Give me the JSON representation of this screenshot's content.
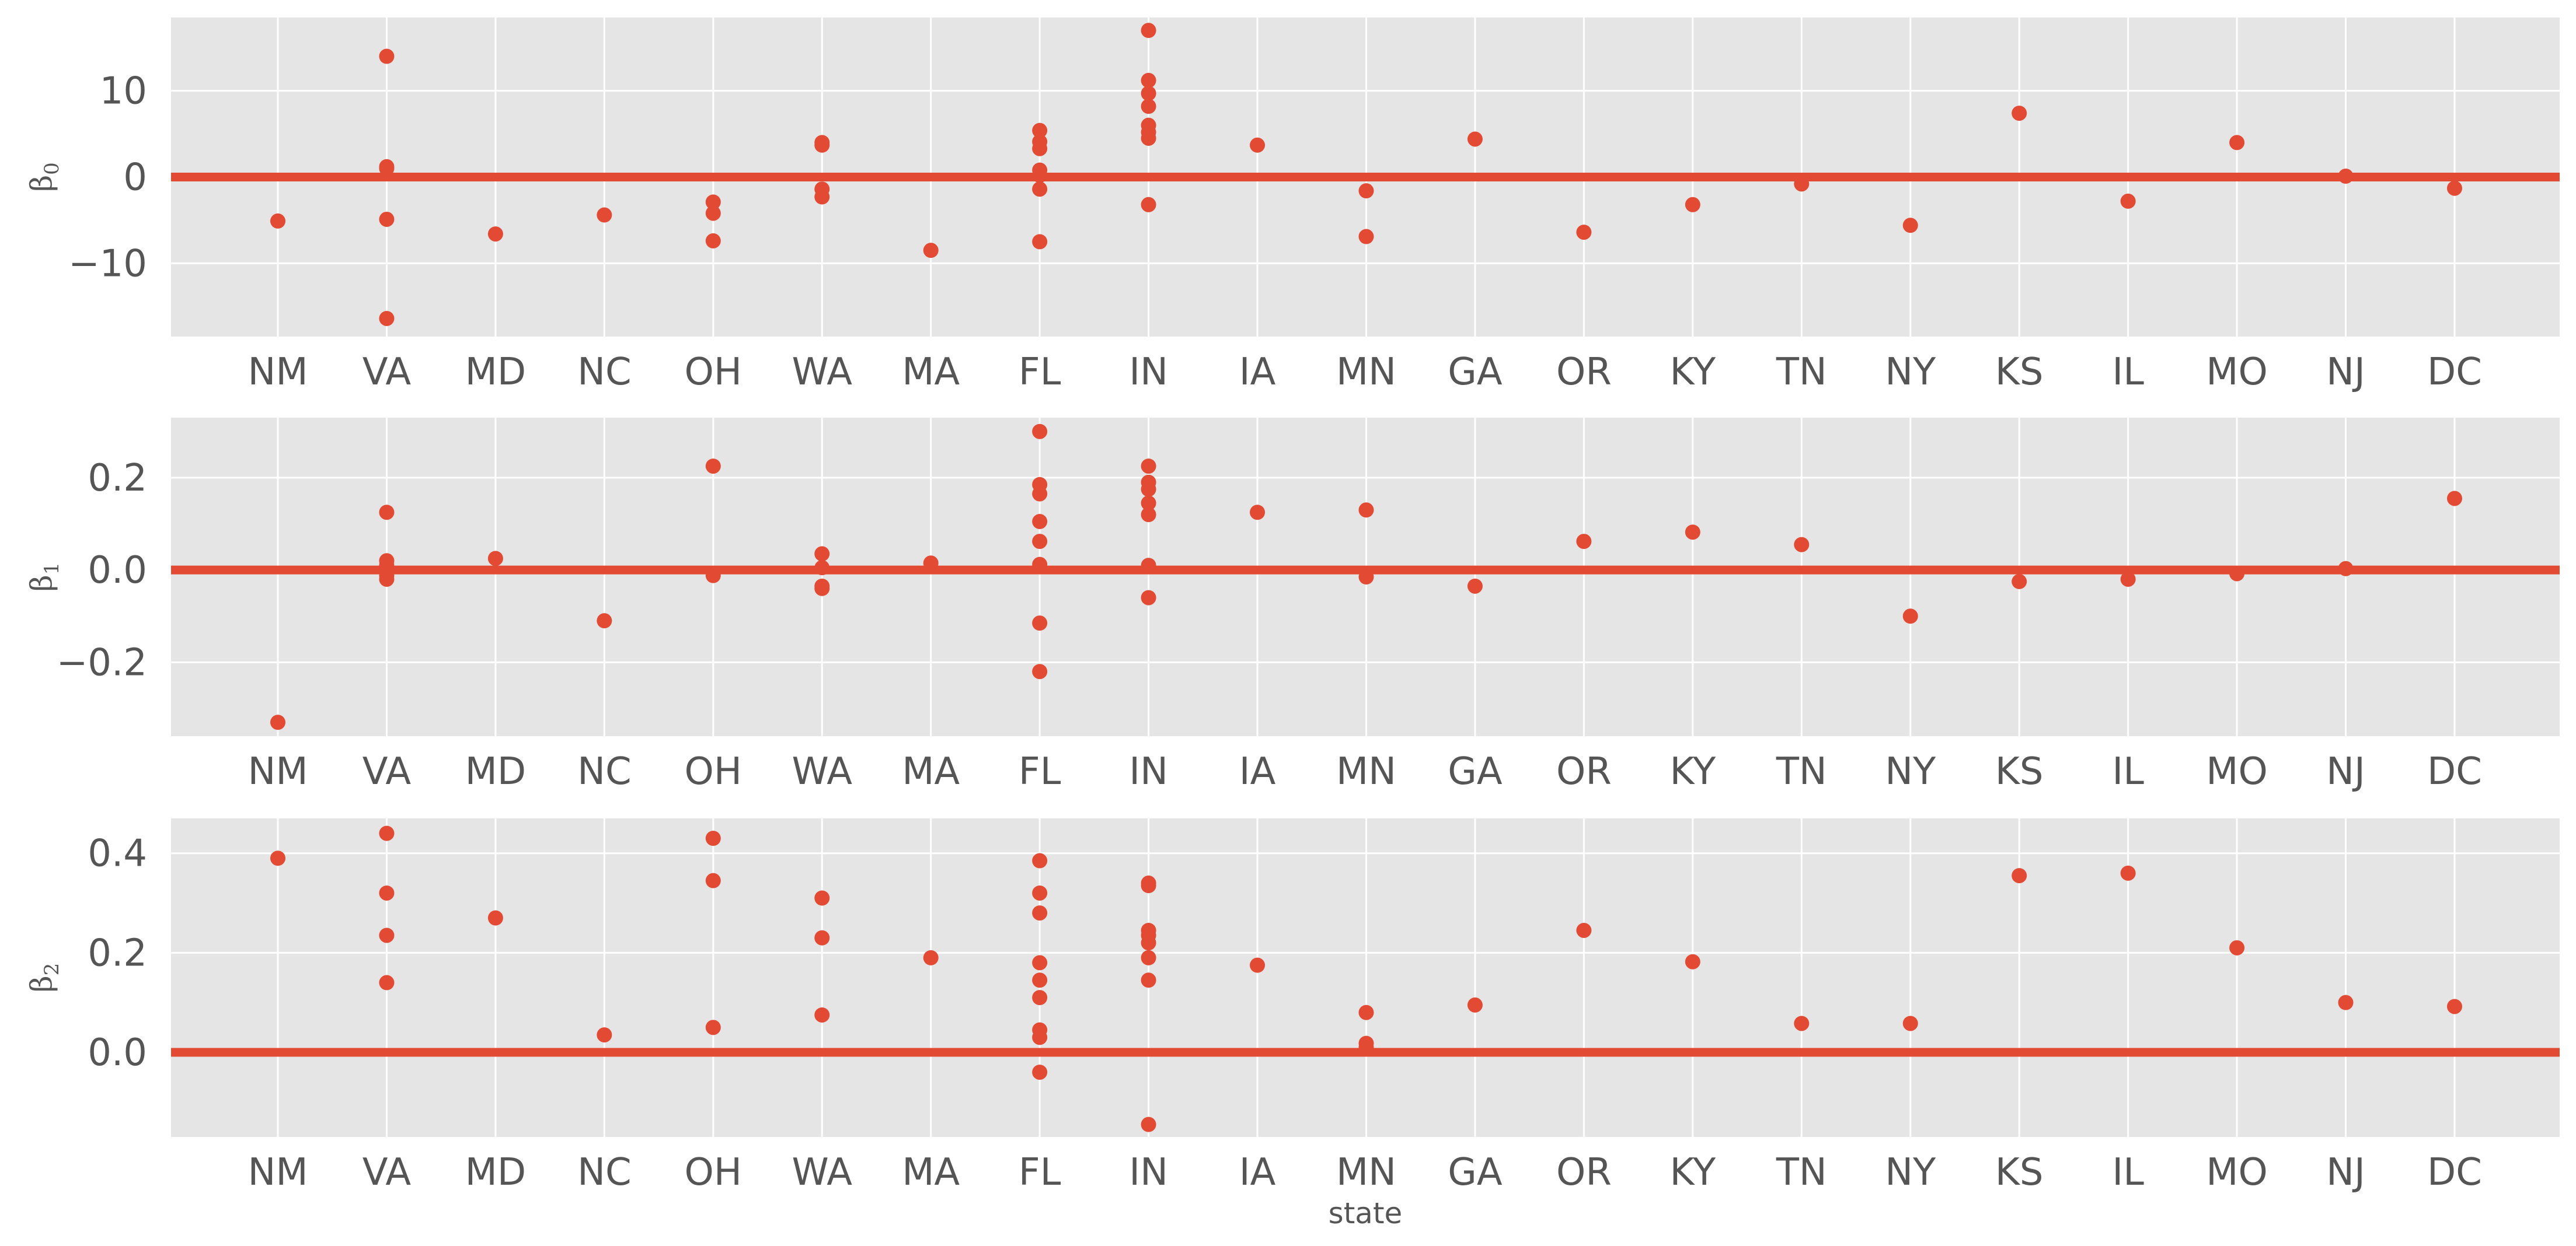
{
  "colors": {
    "figure_bg": "#ffffff",
    "axes_bg": "#e5e5e5",
    "grid": "#ffffff",
    "marker": "#e24a33",
    "zero_line": "#e24a33",
    "tick_text": "#555555"
  },
  "chart_data": [
    {
      "type": "scatter",
      "ylabel": {
        "base": "β",
        "sub": "0"
      },
      "xlabel": "",
      "grid": true,
      "ylim": [
        -18.5,
        18.5
      ],
      "yticks": [
        {
          "value": 10,
          "label": "10"
        },
        {
          "value": 0,
          "label": "0"
        },
        {
          "value": -10,
          "label": "−10"
        }
      ],
      "reference_line": 0,
      "categories": [
        "NM",
        "VA",
        "MD",
        "NC",
        "OH",
        "WA",
        "MA",
        "FL",
        "IN",
        "IA",
        "MN",
        "GA",
        "OR",
        "KY",
        "TN",
        "NY",
        "KS",
        "IL",
        "MO",
        "NJ",
        "DC"
      ],
      "points": {
        "NM": [
          -5.1
        ],
        "VA": [
          14,
          1.2,
          1,
          -4.9,
          -16.4
        ],
        "MD": [
          -6.6
        ],
        "NC": [
          -4.4
        ],
        "OH": [
          -2.9,
          -4.2,
          -7.4
        ],
        "WA": [
          4,
          3.7,
          -1.4,
          -2.3
        ],
        "MA": [
          -8.5
        ],
        "FL": [
          5.4,
          4.1,
          3.3,
          0.8,
          0.2,
          -1.4,
          -7.5
        ],
        "IN": [
          17,
          11.2,
          9.7,
          8.2,
          6,
          5.2,
          4.5,
          -3.2
        ],
        "IA": [
          3.7
        ],
        "MN": [
          -1.6,
          -6.9
        ],
        "GA": [
          4.4
        ],
        "OR": [
          -6.4
        ],
        "KY": [
          -3.2
        ],
        "TN": [
          -0.8
        ],
        "NY": [
          -5.6
        ],
        "KS": [
          7.4
        ],
        "IL": [
          -2.8
        ],
        "MO": [
          4
        ],
        "NJ": [
          0.1
        ],
        "DC": [
          -1.3
        ]
      }
    },
    {
      "type": "scatter",
      "ylabel": {
        "base": "β",
        "sub": "1"
      },
      "xlabel": "",
      "grid": true,
      "ylim": [
        -0.36,
        0.33
      ],
      "yticks": [
        {
          "value": 0.2,
          "label": "0.2"
        },
        {
          "value": 0,
          "label": "0.0"
        },
        {
          "value": -0.2,
          "label": "−0.2"
        }
      ],
      "reference_line": 0,
      "categories": [
        "NM",
        "VA",
        "MD",
        "NC",
        "OH",
        "WA",
        "MA",
        "FL",
        "IN",
        "IA",
        "MN",
        "GA",
        "OR",
        "KY",
        "TN",
        "NY",
        "KS",
        "IL",
        "MO",
        "NJ",
        "DC"
      ],
      "points": {
        "NM": [
          -0.33
        ],
        "VA": [
          0.125,
          0.02,
          0.01,
          -0.012,
          -0.02
        ],
        "MD": [
          0.025
        ],
        "NC": [
          -0.11
        ],
        "OH": [
          0.225,
          -0.012
        ],
        "WA": [
          0.035,
          0.005,
          -0.035,
          -0.04
        ],
        "MA": [
          0.015
        ],
        "FL": [
          0.3,
          0.185,
          0.165,
          0.105,
          0.062,
          0.012,
          -0.115,
          -0.22
        ],
        "IN": [
          0.225,
          0.19,
          0.175,
          0.145,
          0.12,
          0.01,
          -0.06
        ],
        "IA": [
          0.125
        ],
        "MN": [
          0.13,
          -0.015
        ],
        "GA": [
          -0.035
        ],
        "OR": [
          0.062
        ],
        "KY": [
          0.082
        ],
        "TN": [
          0.055
        ],
        "NY": [
          -0.1
        ],
        "KS": [
          -0.025
        ],
        "IL": [
          -0.02
        ],
        "MO": [
          -0.008
        ],
        "NJ": [
          0.003
        ],
        "DC": [
          0.155
        ]
      }
    },
    {
      "type": "scatter",
      "ylabel": {
        "base": "β",
        "sub": "2"
      },
      "xlabel": "state",
      "grid": true,
      "ylim": [
        -0.17,
        0.47
      ],
      "yticks": [
        {
          "value": 0.4,
          "label": "0.4"
        },
        {
          "value": 0.2,
          "label": "0.2"
        },
        {
          "value": 0,
          "label": "0.0"
        }
      ],
      "reference_line": 0,
      "categories": [
        "NM",
        "VA",
        "MD",
        "NC",
        "OH",
        "WA",
        "MA",
        "FL",
        "IN",
        "IA",
        "MN",
        "GA",
        "OR",
        "KY",
        "TN",
        "NY",
        "KS",
        "IL",
        "MO",
        "NJ",
        "DC"
      ],
      "points": {
        "NM": [
          0.39
        ],
        "VA": [
          0.44,
          0.32,
          0.235,
          0.14
        ],
        "MD": [
          0.27
        ],
        "NC": [
          0.035
        ],
        "OH": [
          0.43,
          0.345,
          0.05
        ],
        "WA": [
          0.31,
          0.23,
          0.075
        ],
        "MA": [
          0.19
        ],
        "FL": [
          0.385,
          0.32,
          0.28,
          0.18,
          0.145,
          0.11,
          0.045,
          0.03,
          -0.04
        ],
        "IN": [
          0.34,
          0.335,
          0.245,
          0.235,
          0.22,
          0.19,
          0.145,
          -0.145
        ],
        "IA": [
          0.175
        ],
        "MN": [
          0.08,
          0.018,
          0.01
        ],
        "GA": [
          0.095
        ],
        "OR": [
          0.245
        ],
        "KY": [
          0.182
        ],
        "TN": [
          0.058
        ],
        "NY": [
          0.058
        ],
        "KS": [
          0.355
        ],
        "IL": [
          0.36
        ],
        "MO": [
          0.21
        ],
        "NJ": [
          0.1
        ],
        "DC": [
          0.092
        ]
      }
    }
  ]
}
